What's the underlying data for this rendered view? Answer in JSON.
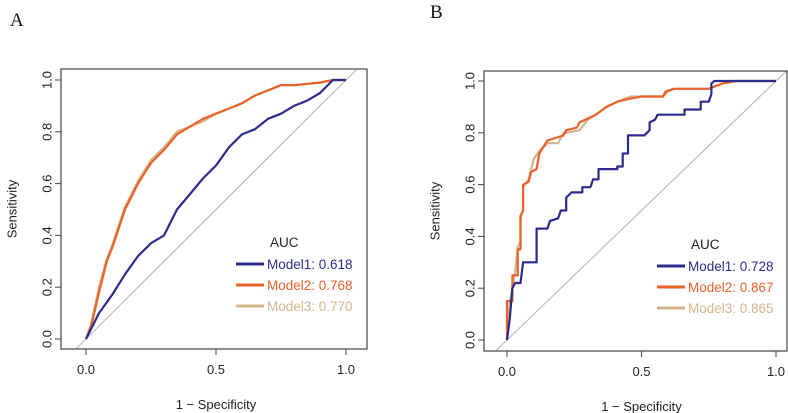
{
  "chart_data": [
    {
      "type": "line",
      "panel_label": "A",
      "xlabel": "1 − Specificity",
      "ylabel": "Sensitivity",
      "xlim": [
        0,
        1
      ],
      "ylim": [
        0,
        1
      ],
      "xticks": [
        "0.0",
        "0.5",
        "1.0"
      ],
      "xtick_values": [
        0,
        0.5,
        1
      ],
      "yticks": [
        "0.0",
        "0.2",
        "0.4",
        "0.6",
        "0.8",
        "1.0"
      ],
      "ytick_values": [
        0,
        0.2,
        0.4,
        0.6,
        0.8,
        1
      ],
      "legend_title": "AUC",
      "legend_position": "bottom-right",
      "reference_line": "diagonal",
      "series": [
        {
          "name": "Model1",
          "label": "Model1: 0.618",
          "auc": 0.618,
          "color": "#2b2c8c",
          "x": [
            0,
            0.05,
            0.1,
            0.15,
            0.2,
            0.25,
            0.3,
            0.35,
            0.4,
            0.45,
            0.5,
            0.55,
            0.6,
            0.65,
            0.7,
            0.75,
            0.8,
            0.85,
            0.9,
            0.95,
            1
          ],
          "y": [
            0,
            0.1,
            0.17,
            0.25,
            0.32,
            0.37,
            0.4,
            0.5,
            0.56,
            0.62,
            0.67,
            0.74,
            0.79,
            0.81,
            0.85,
            0.87,
            0.9,
            0.92,
            0.95,
            1,
            1
          ]
        },
        {
          "name": "Model2",
          "label": "Model2: 0.768",
          "auc": 0.768,
          "color": "#e8622a",
          "x": [
            0,
            0.02,
            0.05,
            0.08,
            0.1,
            0.15,
            0.2,
            0.25,
            0.3,
            0.35,
            0.4,
            0.45,
            0.5,
            0.55,
            0.6,
            0.65,
            0.7,
            0.75,
            0.8,
            0.9,
            0.95,
            1
          ],
          "y": [
            0,
            0.05,
            0.18,
            0.3,
            0.35,
            0.5,
            0.6,
            0.68,
            0.73,
            0.79,
            0.82,
            0.85,
            0.87,
            0.89,
            0.91,
            0.94,
            0.96,
            0.98,
            0.98,
            0.99,
            1,
            1
          ]
        },
        {
          "name": "Model3",
          "label": "Model3: 0.770",
          "auc": 0.77,
          "color": "#d4b48c",
          "x": [
            0,
            0.02,
            0.05,
            0.08,
            0.1,
            0.15,
            0.2,
            0.25,
            0.3,
            0.35,
            0.4,
            0.45,
            0.5,
            0.55,
            0.6,
            0.65,
            0.7,
            0.75,
            0.8,
            0.9,
            0.95,
            1
          ],
          "y": [
            0,
            0.06,
            0.2,
            0.31,
            0.36,
            0.51,
            0.61,
            0.69,
            0.74,
            0.8,
            0.82,
            0.84,
            0.87,
            0.89,
            0.91,
            0.94,
            0.96,
            0.98,
            0.98,
            0.99,
            1,
            1
          ]
        }
      ]
    },
    {
      "type": "line",
      "panel_label": "B",
      "xlabel": "1 − Specificity",
      "ylabel": "Sensitivity",
      "xlim": [
        0,
        1
      ],
      "ylim": [
        0,
        1
      ],
      "xticks": [
        "0.0",
        "0.5",
        "1.0"
      ],
      "xtick_values": [
        0,
        0.5,
        1
      ],
      "yticks": [
        "0.0",
        "0.2",
        "0.4",
        "0.6",
        "0.8",
        "1.0"
      ],
      "ytick_values": [
        0,
        0.2,
        0.4,
        0.6,
        0.8,
        1
      ],
      "legend_title": "AUC",
      "legend_position": "bottom-right",
      "reference_line": "diagonal",
      "series": [
        {
          "name": "Model1",
          "label": "Model1: 0.728",
          "auc": 0.728,
          "color": "#2b2c8c",
          "x": [
            0,
            0.01,
            0.02,
            0.03,
            0.05,
            0.06,
            0.11,
            0.11,
            0.15,
            0.16,
            0.19,
            0.2,
            0.22,
            0.22,
            0.24,
            0.28,
            0.28,
            0.31,
            0.32,
            0.34,
            0.34,
            0.41,
            0.41,
            0.43,
            0.43,
            0.45,
            0.45,
            0.51,
            0.53,
            0.53,
            0.55,
            0.56,
            0.66,
            0.66,
            0.72,
            0.72,
            0.75,
            0.76,
            0.76,
            0.77,
            1
          ],
          "y": [
            0,
            0.08,
            0.2,
            0.22,
            0.22,
            0.3,
            0.3,
            0.43,
            0.43,
            0.46,
            0.47,
            0.5,
            0.5,
            0.55,
            0.57,
            0.57,
            0.59,
            0.59,
            0.62,
            0.62,
            0.66,
            0.66,
            0.67,
            0.67,
            0.72,
            0.72,
            0.79,
            0.79,
            0.81,
            0.84,
            0.85,
            0.87,
            0.87,
            0.89,
            0.89,
            0.92,
            0.92,
            0.95,
            0.99,
            1,
            1
          ]
        },
        {
          "name": "Model2",
          "label": "Model2: 0.867",
          "auc": 0.867,
          "color": "#e8622a",
          "x": [
            0,
            0,
            0.02,
            0.02,
            0.04,
            0.04,
            0.05,
            0.05,
            0.06,
            0.06,
            0.08,
            0.09,
            0.11,
            0.12,
            0.15,
            0.18,
            0.21,
            0.22,
            0.26,
            0.27,
            0.33,
            0.37,
            0.41,
            0.45,
            0.5,
            0.58,
            0.59,
            0.62,
            0.75,
            0.8,
            0.85,
            1
          ],
          "y": [
            0,
            0.15,
            0.15,
            0.25,
            0.25,
            0.35,
            0.35,
            0.48,
            0.5,
            0.6,
            0.61,
            0.65,
            0.66,
            0.72,
            0.77,
            0.78,
            0.79,
            0.81,
            0.82,
            0.84,
            0.87,
            0.9,
            0.92,
            0.93,
            0.94,
            0.94,
            0.96,
            0.97,
            0.97,
            0.99,
            1,
            1
          ]
        },
        {
          "name": "Model3",
          "label": "Model3: 0.865",
          "auc": 0.865,
          "color": "#d4b48c",
          "x": [
            0,
            0.01,
            0.02,
            0.03,
            0.04,
            0.05,
            0.05,
            0.06,
            0.06,
            0.08,
            0.1,
            0.12,
            0.15,
            0.19,
            0.21,
            0.22,
            0.27,
            0.3,
            0.33,
            0.37,
            0.41,
            0.46,
            0.5,
            0.58,
            0.6,
            0.62,
            0.75,
            0.8,
            0.85,
            1
          ],
          "y": [
            0,
            0.14,
            0.2,
            0.26,
            0.36,
            0.38,
            0.47,
            0.5,
            0.59,
            0.62,
            0.7,
            0.73,
            0.76,
            0.76,
            0.8,
            0.8,
            0.81,
            0.85,
            0.87,
            0.9,
            0.92,
            0.94,
            0.94,
            0.94,
            0.96,
            0.97,
            0.97,
            0.99,
            1,
            1
          ]
        }
      ]
    }
  ]
}
